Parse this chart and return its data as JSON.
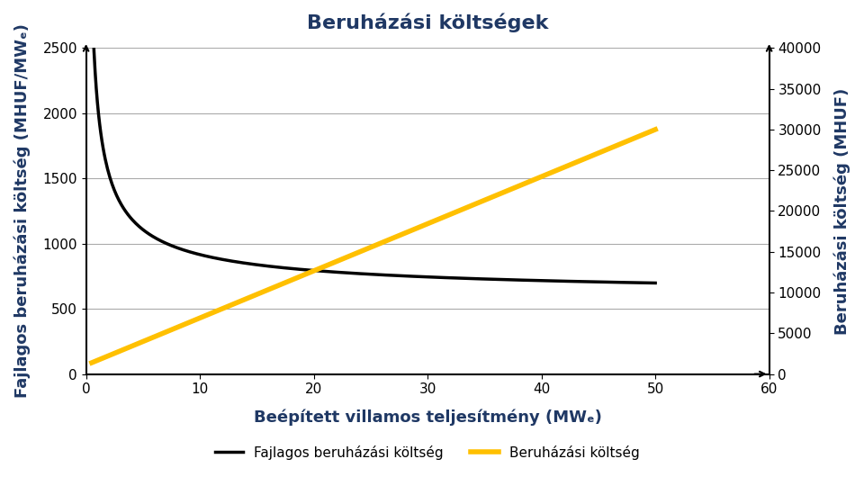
{
  "title": "Beruházási költségek",
  "title_color": "#1F3864",
  "xlabel": "Beépített villamos teljesítmény (MWₑ)",
  "ylabel_left": "Fajlagos beruházási költség (MHUF/MWₑ)",
  "ylabel_right": "Beruházási költség (MHUF)",
  "xlim": [
    0,
    60
  ],
  "ylim_left": [
    0,
    2500
  ],
  "ylim_right": [
    0,
    40000
  ],
  "xticks": [
    0,
    10,
    20,
    30,
    40,
    50,
    60
  ],
  "yticks_left": [
    0,
    500,
    1000,
    1500,
    2000,
    2500
  ],
  "yticks_right": [
    0,
    5000,
    10000,
    15000,
    20000,
    25000,
    30000,
    35000,
    40000
  ],
  "line1_label": "Fajlagos beruházási költség",
  "line2_label": "Beruházási költség",
  "line1_color": "#000000",
  "line2_color": "#FFC000",
  "background_color": "#FFFFFF",
  "axis_label_color": "#1F3864",
  "grid_color": "#AAAAAA",
  "label_fontsize": 13,
  "title_fontsize": 16,
  "tick_fontsize": 11
}
